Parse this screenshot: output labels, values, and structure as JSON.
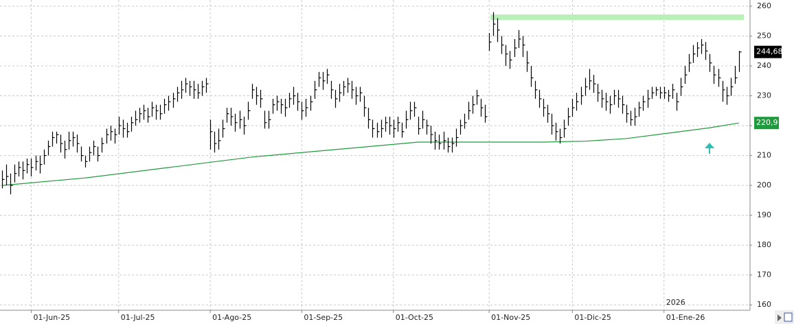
{
  "chart_data": {
    "type": "ohlc",
    "xlim": [
      -0.5,
      179.5
    ],
    "xticks": [
      {
        "value": 7,
        "label": "01-Jun-25"
      },
      {
        "value": 28,
        "label": "01-Jul-25"
      },
      {
        "value": 50,
        "label": "01-Ago-25"
      },
      {
        "value": 72,
        "label": "01-Sep-25"
      },
      {
        "value": 94,
        "label": "01-Oct-25"
      },
      {
        "value": 117,
        "label": "01-Nov-25"
      },
      {
        "value": 137,
        "label": "01-Dic-25"
      },
      {
        "value": 159,
        "label": "01-Ene-26"
      }
    ],
    "year_label": {
      "value": 159,
      "label": "2026"
    },
    "ylim": [
      158.2,
      262.07
    ],
    "yticks": [
      160,
      170,
      180,
      190,
      200,
      210,
      220,
      230,
      240,
      250,
      260
    ],
    "grid": true,
    "color": "#000000",
    "high": [
      205,
      207,
      204,
      207,
      208,
      208,
      209,
      209,
      210,
      210,
      212,
      215,
      218,
      218,
      217,
      215,
      218,
      218,
      217,
      213,
      210,
      213,
      215,
      213,
      216,
      219,
      220,
      219,
      223,
      222,
      221,
      223,
      225,
      226,
      227,
      226,
      228,
      227,
      227,
      229,
      230,
      231,
      233,
      235,
      236,
      235,
      235,
      234,
      235,
      236,
      222,
      218,
      219,
      222,
      226,
      226,
      224,
      225,
      223,
      228,
      234,
      233,
      232,
      225,
      225,
      229,
      230,
      229,
      229,
      231,
      233,
      231,
      228,
      229,
      230,
      235,
      238,
      238,
      239,
      235,
      232,
      234,
      235,
      236,
      235,
      233,
      233,
      230,
      226,
      222,
      221,
      222,
      223,
      223,
      222,
      223,
      221,
      225,
      228,
      228,
      223,
      225,
      222,
      220,
      218,
      217,
      218,
      216,
      216,
      219,
      222,
      224,
      228,
      230,
      232,
      229,
      227,
      251,
      258,
      256,
      250,
      247,
      245,
      249,
      252,
      250,
      245,
      240,
      235,
      232,
      229,
      227,
      224,
      221,
      219,
      222,
      226,
      229,
      231,
      233,
      236,
      239,
      237,
      234,
      232,
      231,
      230,
      232,
      232,
      230,
      227,
      225,
      226,
      228,
      230,
      232,
      233,
      233,
      233,
      233,
      232,
      234,
      231,
      236,
      240,
      244,
      247,
      248,
      249,
      248,
      244,
      240,
      239,
      235,
      233,
      236,
      240,
      245
    ],
    "low": [
      199,
      200,
      197,
      201,
      203,
      202,
      204,
      203,
      205,
      204,
      207,
      210,
      213,
      214,
      211,
      209,
      212,
      213,
      211,
      208,
      206,
      208,
      210,
      208,
      211,
      214,
      215,
      214,
      217,
      216,
      216,
      218,
      220,
      221,
      222,
      221,
      223,
      222,
      222,
      224,
      225,
      226,
      228,
      229,
      231,
      230,
      229,
      229,
      230,
      231,
      212,
      211,
      212,
      216,
      221,
      220,
      218,
      219,
      217,
      222,
      229,
      227,
      226,
      219,
      219,
      224,
      225,
      224,
      223,
      226,
      227,
      225,
      222,
      223,
      225,
      229,
      233,
      232,
      234,
      229,
      226,
      228,
      230,
      231,
      229,
      227,
      228,
      223,
      219,
      216,
      216,
      216,
      218,
      217,
      216,
      218,
      216,
      219,
      222,
      223,
      217,
      219,
      217,
      214,
      212,
      212,
      212,
      211,
      211,
      213,
      217,
      219,
      222,
      224,
      227,
      223,
      221,
      245,
      250,
      248,
      244,
      240,
      239,
      243,
      246,
      243,
      238,
      233,
      229,
      226,
      223,
      221,
      217,
      215,
      214,
      216,
      220,
      223,
      225,
      227,
      230,
      232,
      231,
      228,
      226,
      225,
      224,
      227,
      226,
      224,
      221,
      220,
      220,
      223,
      225,
      226,
      229,
      230,
      229,
      229,
      228,
      229,
      225,
      230,
      234,
      238,
      241,
      243,
      244,
      242,
      238,
      234,
      233,
      228,
      227,
      230,
      234,
      238
    ],
    "close": [
      202,
      203,
      200,
      204,
      206,
      205,
      207,
      206,
      208,
      207,
      210,
      213,
      216,
      217,
      214,
      212,
      215,
      216,
      214,
      210,
      208,
      211,
      213,
      210,
      214,
      217,
      218,
      217,
      220,
      219,
      218,
      221,
      222,
      224,
      225,
      223,
      226,
      225,
      224,
      227,
      228,
      229,
      231,
      232,
      234,
      233,
      232,
      231,
      233,
      234,
      218,
      214,
      215,
      219,
      224,
      223,
      221,
      222,
      220,
      225,
      232,
      230,
      229,
      221,
      222,
      227,
      228,
      227,
      226,
      229,
      230,
      228,
      225,
      226,
      228,
      232,
      236,
      235,
      237,
      232,
      229,
      231,
      233,
      234,
      232,
      230,
      231,
      226,
      222,
      219,
      218,
      219,
      221,
      220,
      219,
      221,
      218,
      222,
      225,
      226,
      219,
      222,
      220,
      217,
      215,
      214,
      215,
      213,
      214,
      216,
      220,
      221,
      225,
      227,
      230,
      226,
      223,
      248,
      254,
      252,
      247,
      244,
      242,
      246,
      249,
      247,
      241,
      236,
      232,
      229,
      226,
      224,
      220,
      218,
      216,
      219,
      223,
      226,
      228,
      230,
      233,
      235,
      234,
      231,
      229,
      228,
      227,
      230,
      229,
      227,
      224,
      222,
      223,
      226,
      228,
      229,
      231,
      232,
      231,
      231,
      230,
      232,
      228,
      233,
      237,
      241,
      244,
      246,
      247,
      245,
      241,
      237,
      236,
      232,
      230,
      233,
      236,
      244.68
    ],
    "last_value_label": "244,68",
    "ma": {
      "color": "#1f9a3c",
      "x": [
        0,
        20,
        40,
        60,
        80,
        100,
        117,
        130,
        140,
        150,
        160,
        170,
        177
      ],
      "values": [
        200,
        202.5,
        206,
        209.5,
        212,
        214.5,
        214.5,
        214.5,
        214.8,
        215.7,
        217.5,
        219.3,
        220.9
      ],
      "value_label": "220,9"
    },
    "resistance": {
      "value": 256.3,
      "from": 117,
      "color": "#b8f0b8"
    }
  }
}
